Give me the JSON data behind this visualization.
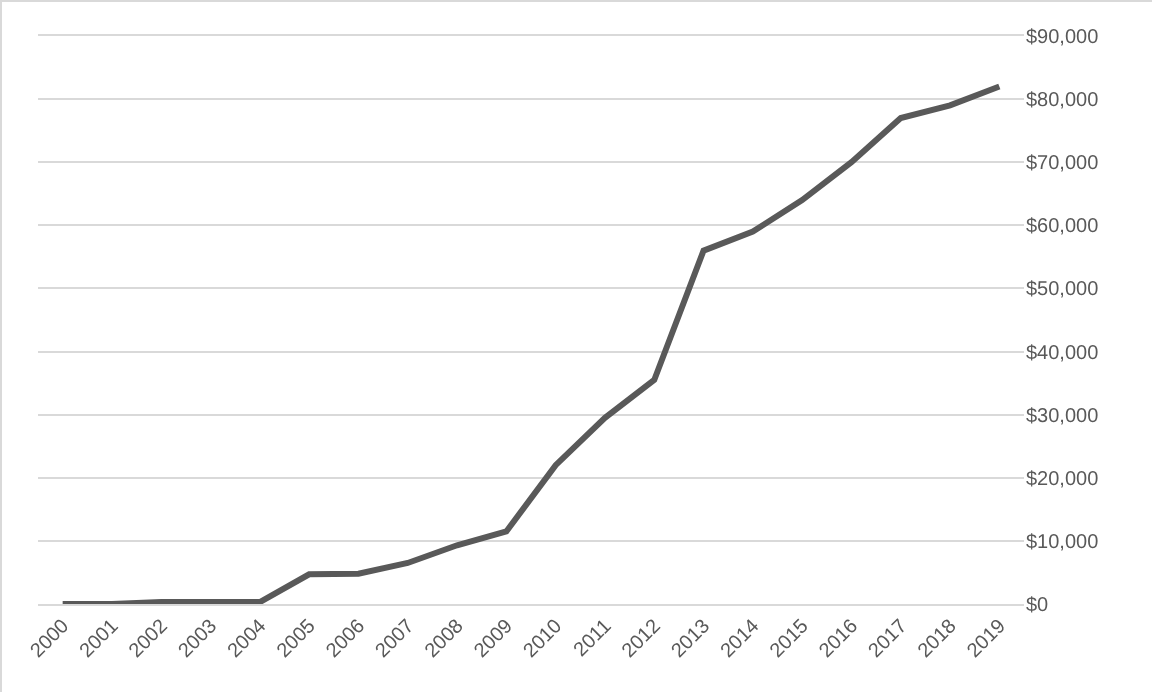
{
  "chart_data": {
    "type": "line",
    "categories": [
      "2000",
      "2001",
      "2002",
      "2003",
      "2004",
      "2005",
      "2006",
      "2007",
      "2008",
      "2009",
      "2010",
      "2011",
      "2012",
      "2013",
      "2014",
      "2015",
      "2016",
      "2017",
      "2018",
      "2019"
    ],
    "series": [
      {
        "color": "#595959",
        "values": [
          0,
          0,
          300,
          300,
          300,
          4700,
          4800,
          6500,
          9300,
          11500,
          22000,
          29500,
          35500,
          56000,
          59000,
          64000,
          70000,
          77000,
          79000,
          82000
        ]
      }
    ],
    "ylim": [
      0,
      90000
    ],
    "yticks": [
      {
        "value": 0,
        "label": "$0"
      },
      {
        "value": 10000,
        "label": "$10,000"
      },
      {
        "value": 20000,
        "label": "$20,000"
      },
      {
        "value": 30000,
        "label": "$30,000"
      },
      {
        "value": 40000,
        "label": "$40,000"
      },
      {
        "value": 50000,
        "label": "$50,000"
      },
      {
        "value": 60000,
        "label": "$60,000"
      },
      {
        "value": 70000,
        "label": "$70,000"
      },
      {
        "value": 80000,
        "label": "$80,000"
      },
      {
        "value": 90000,
        "label": "$90,000"
      }
    ],
    "grid": "y",
    "marker": "none",
    "line_style": "solid"
  }
}
